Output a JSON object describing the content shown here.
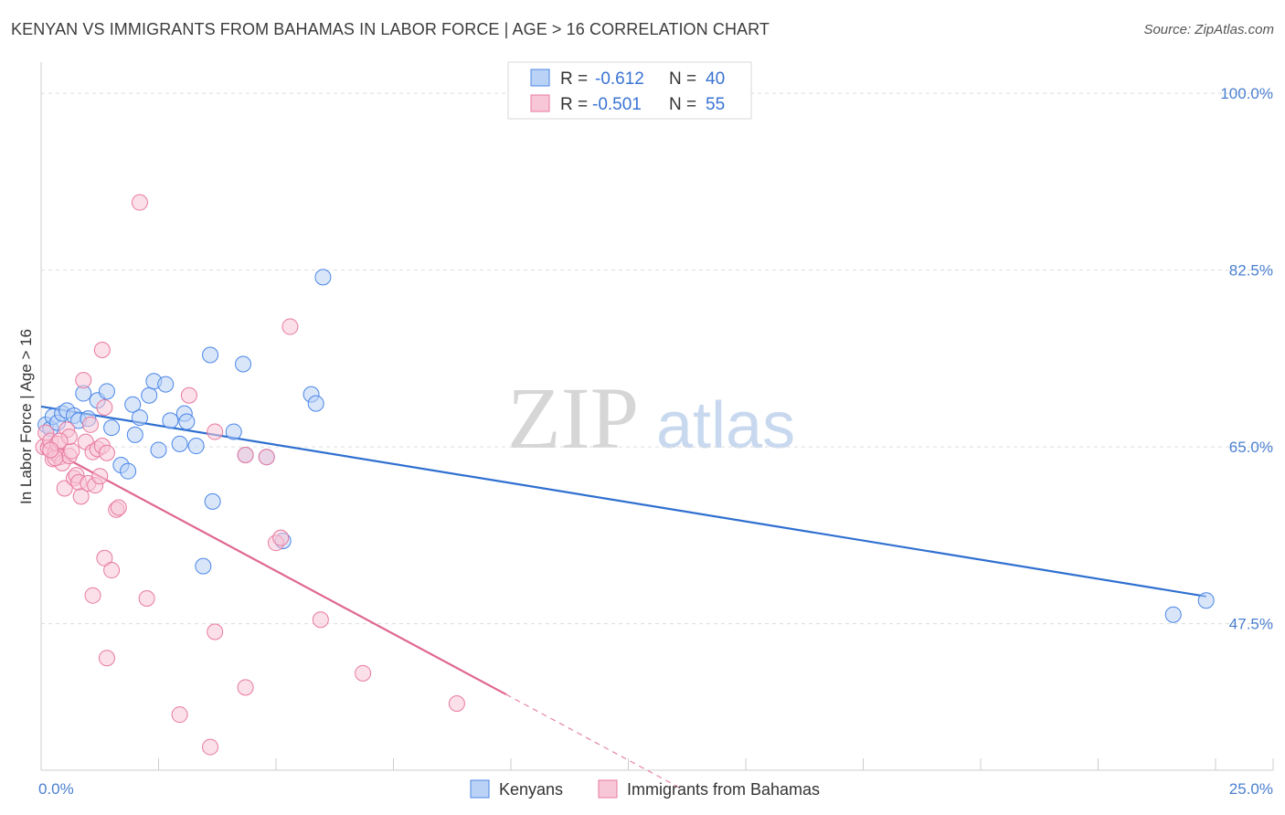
{
  "title": "KENYAN VS IMMIGRANTS FROM BAHAMAS IN LABOR FORCE | AGE > 16 CORRELATION CHART",
  "source": "Source: ZipAtlas.com",
  "watermark": {
    "zip": "ZIP",
    "atlas": "atlas"
  },
  "colors": {
    "blue": "#4a86e8",
    "blue_fill": "#b9d2f5",
    "blue_line": "#2f6fd0",
    "pink": "#e8799e",
    "pink_fill": "#f8c7d7",
    "pink_line": "#e0678f",
    "grid": "#dddddd",
    "tick": "#4a7fd0"
  },
  "legend": {
    "rows": [
      {
        "r_label": "R =",
        "r_value": "-0.612",
        "n_label": "N =",
        "n_value": "40",
        "series": "blue"
      },
      {
        "r_label": "R =",
        "r_value": "-0.501",
        "n_label": "N =",
        "n_value": "55",
        "series": "pink"
      }
    ]
  },
  "chart_data": {
    "type": "scatter",
    "title": "KENYAN VS IMMIGRANTS FROM BAHAMAS IN LABOR FORCE | AGE > 16 CORRELATION CHART",
    "xlabel": "",
    "ylabel": "In Labor Force | Age > 16",
    "xlim": [
      0,
      25
    ],
    "ylim": [
      33,
      102
    ],
    "x_tick_labels": [
      "0.0%",
      "25.0%"
    ],
    "y_ticks": [
      {
        "value": 47.5,
        "label": "47.5%"
      },
      {
        "value": 65.0,
        "label": "65.0%"
      },
      {
        "value": 82.5,
        "label": "82.5%"
      },
      {
        "value": 100.0,
        "label": "100.0%"
      }
    ],
    "series": [
      {
        "name": "Kenyans",
        "color": "blue",
        "r": -0.612,
        "n": 40,
        "trend": {
          "x0": 0,
          "y0": 69.0,
          "x1": 24.8,
          "y1": 50.2
        },
        "points": [
          [
            0.1,
            67.2
          ],
          [
            0.2,
            66.8
          ],
          [
            0.25,
            68.0
          ],
          [
            0.35,
            67.4
          ],
          [
            0.45,
            68.3
          ],
          [
            0.55,
            68.6
          ],
          [
            0.7,
            68.1
          ],
          [
            0.8,
            67.6
          ],
          [
            0.9,
            70.3
          ],
          [
            1.0,
            67.8
          ],
          [
            1.2,
            69.6
          ],
          [
            1.4,
            70.5
          ],
          [
            1.5,
            66.9
          ],
          [
            1.7,
            63.2
          ],
          [
            1.85,
            62.6
          ],
          [
            1.95,
            69.2
          ],
          [
            2.0,
            66.2
          ],
          [
            2.1,
            67.9
          ],
          [
            2.3,
            70.1
          ],
          [
            2.4,
            71.5
          ],
          [
            2.5,
            64.7
          ],
          [
            2.65,
            71.2
          ],
          [
            2.75,
            67.6
          ],
          [
            2.95,
            65.3
          ],
          [
            3.05,
            68.3
          ],
          [
            3.1,
            67.5
          ],
          [
            3.3,
            65.1
          ],
          [
            3.45,
            53.2
          ],
          [
            3.6,
            74.1
          ],
          [
            3.65,
            59.6
          ],
          [
            4.1,
            66.5
          ],
          [
            4.3,
            73.2
          ],
          [
            4.35,
            64.2
          ],
          [
            4.8,
            64.0
          ],
          [
            5.15,
            55.7
          ],
          [
            5.75,
            70.2
          ],
          [
            5.85,
            69.3
          ],
          [
            6.0,
            81.8
          ],
          [
            24.1,
            48.4
          ],
          [
            24.8,
            49.8
          ]
        ]
      },
      {
        "name": "Immigrants from Bahamas",
        "color": "pink",
        "r": -0.501,
        "n": 55,
        "trend": {
          "x0": 0,
          "y0": 65.2,
          "x1": 9.9,
          "y1": 40.5
        },
        "trend_dashed": {
          "x0": 9.9,
          "y0": 40.5,
          "x1": 13.7,
          "y1": 31.0
        },
        "points": [
          [
            0.05,
            65.0
          ],
          [
            0.1,
            66.4
          ],
          [
            0.15,
            64.9
          ],
          [
            0.2,
            65.6
          ],
          [
            0.25,
            63.8
          ],
          [
            0.3,
            64.4
          ],
          [
            0.35,
            65.3
          ],
          [
            0.4,
            64.0
          ],
          [
            0.45,
            63.4
          ],
          [
            0.5,
            60.9
          ],
          [
            0.55,
            66.7
          ],
          [
            0.6,
            64.1
          ],
          [
            0.65,
            64.6
          ],
          [
            0.7,
            61.9
          ],
          [
            0.75,
            62.2
          ],
          [
            0.8,
            61.5
          ],
          [
            0.85,
            60.1
          ],
          [
            0.9,
            71.6
          ],
          [
            0.95,
            65.5
          ],
          [
            1.0,
            61.4
          ],
          [
            1.05,
            67.2
          ],
          [
            1.1,
            64.5
          ],
          [
            1.15,
            61.2
          ],
          [
            1.2,
            64.8
          ],
          [
            1.25,
            62.1
          ],
          [
            1.3,
            65.1
          ],
          [
            1.35,
            68.9
          ],
          [
            1.4,
            64.4
          ],
          [
            1.1,
            50.3
          ],
          [
            1.3,
            74.6
          ],
          [
            1.35,
            54.0
          ],
          [
            1.4,
            44.1
          ],
          [
            1.5,
            52.8
          ],
          [
            1.6,
            58.8
          ],
          [
            1.65,
            59.0
          ],
          [
            2.1,
            89.2
          ],
          [
            2.25,
            50.0
          ],
          [
            2.95,
            38.5
          ],
          [
            3.15,
            70.1
          ],
          [
            3.6,
            35.3
          ],
          [
            3.7,
            46.7
          ],
          [
            3.7,
            66.5
          ],
          [
            4.35,
            64.2
          ],
          [
            4.35,
            41.2
          ],
          [
            4.8,
            64.0
          ],
          [
            5.0,
            55.5
          ],
          [
            5.1,
            56.0
          ],
          [
            5.3,
            76.9
          ],
          [
            5.95,
            47.9
          ],
          [
            6.85,
            42.6
          ],
          [
            8.85,
            39.6
          ],
          [
            0.3,
            63.9
          ],
          [
            0.6,
            66.0
          ],
          [
            0.4,
            65.6
          ],
          [
            0.2,
            64.7
          ]
        ]
      }
    ],
    "legend_position": "top-center"
  },
  "axes": {
    "ylabel": "In Labor Force | Age > 16"
  },
  "bottom_legend": [
    {
      "label": "Kenyans",
      "series": "blue"
    },
    {
      "label": "Immigrants from Bahamas",
      "series": "pink"
    }
  ]
}
